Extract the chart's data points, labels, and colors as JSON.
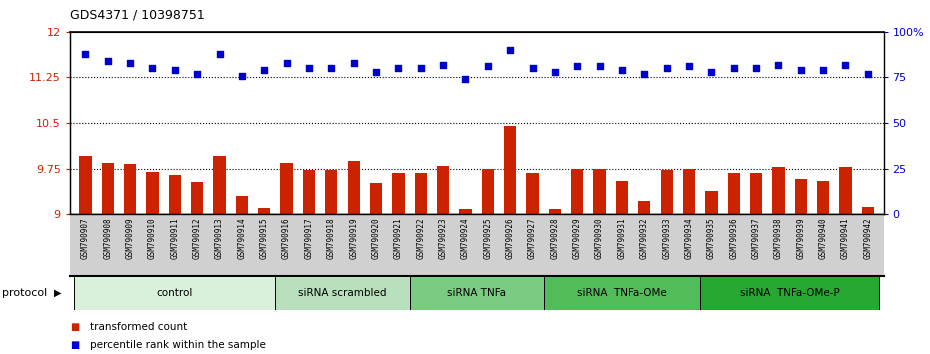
{
  "title": "GDS4371 / 10398751",
  "samples": [
    "GSM790907",
    "GSM790908",
    "GSM790909",
    "GSM790910",
    "GSM790911",
    "GSM790912",
    "GSM790913",
    "GSM790914",
    "GSM790915",
    "GSM790916",
    "GSM790917",
    "GSM790918",
    "GSM790919",
    "GSM790920",
    "GSM790921",
    "GSM790922",
    "GSM790923",
    "GSM790924",
    "GSM790925",
    "GSM790926",
    "GSM790927",
    "GSM790928",
    "GSM790929",
    "GSM790930",
    "GSM790931",
    "GSM790932",
    "GSM790933",
    "GSM790934",
    "GSM790935",
    "GSM790936",
    "GSM790937",
    "GSM790938",
    "GSM790939",
    "GSM790940",
    "GSM790941",
    "GSM790942"
  ],
  "bar_values": [
    9.95,
    9.85,
    9.82,
    9.7,
    9.65,
    9.53,
    9.95,
    9.3,
    9.1,
    9.85,
    9.72,
    9.72,
    9.88,
    9.52,
    9.68,
    9.68,
    9.8,
    9.08,
    9.75,
    10.45,
    9.68,
    9.08,
    9.75,
    9.75,
    9.55,
    9.22,
    9.72,
    9.75,
    9.38,
    9.68,
    9.68,
    9.78,
    9.58,
    9.55,
    9.78,
    9.12
  ],
  "dot_values": [
    88,
    84,
    83,
    80,
    79,
    77,
    88,
    76,
    79,
    83,
    80,
    80,
    83,
    78,
    80,
    80,
    82,
    74,
    81,
    90,
    80,
    78,
    81,
    81,
    79,
    77,
    80,
    81,
    78,
    80,
    80,
    82,
    79,
    79,
    82,
    77
  ],
  "groups": [
    {
      "label": "control",
      "start": 0,
      "end": 9,
      "color": "#d9f0da"
    },
    {
      "label": "siRNA scrambled",
      "start": 9,
      "end": 15,
      "color": "#b8e0bc"
    },
    {
      "label": "siRNA TNFa",
      "start": 15,
      "end": 21,
      "color": "#7acc80"
    },
    {
      "label": "siRNA  TNFa-OMe",
      "start": 21,
      "end": 28,
      "color": "#52bb5a"
    },
    {
      "label": "siRNA  TNFa-OMe-P",
      "start": 28,
      "end": 36,
      "color": "#26a832"
    }
  ],
  "ylim_left": [
    9.0,
    12.0
  ],
  "ylim_right": [
    0,
    100
  ],
  "yticks_left": [
    9.0,
    9.75,
    10.5,
    11.25,
    12.0
  ],
  "ytick_labels_left": [
    "9",
    "9.75",
    "10.5",
    "11.25",
    "12"
  ],
  "yticks_right": [
    0,
    25,
    50,
    75,
    100
  ],
  "ytick_labels_right": [
    "0",
    "25",
    "50",
    "75",
    "100%"
  ],
  "hlines": [
    9.75,
    10.5,
    11.25
  ],
  "bar_color": "#cc2200",
  "dot_color": "#0000cc",
  "bar_width": 0.55,
  "protocol_label": "protocol",
  "legend_items": [
    {
      "label": "transformed count",
      "color": "#cc2200"
    },
    {
      "label": "percentile rank within the sample",
      "color": "#0000cc"
    }
  ],
  "xtick_bg": "#d0d0d0"
}
